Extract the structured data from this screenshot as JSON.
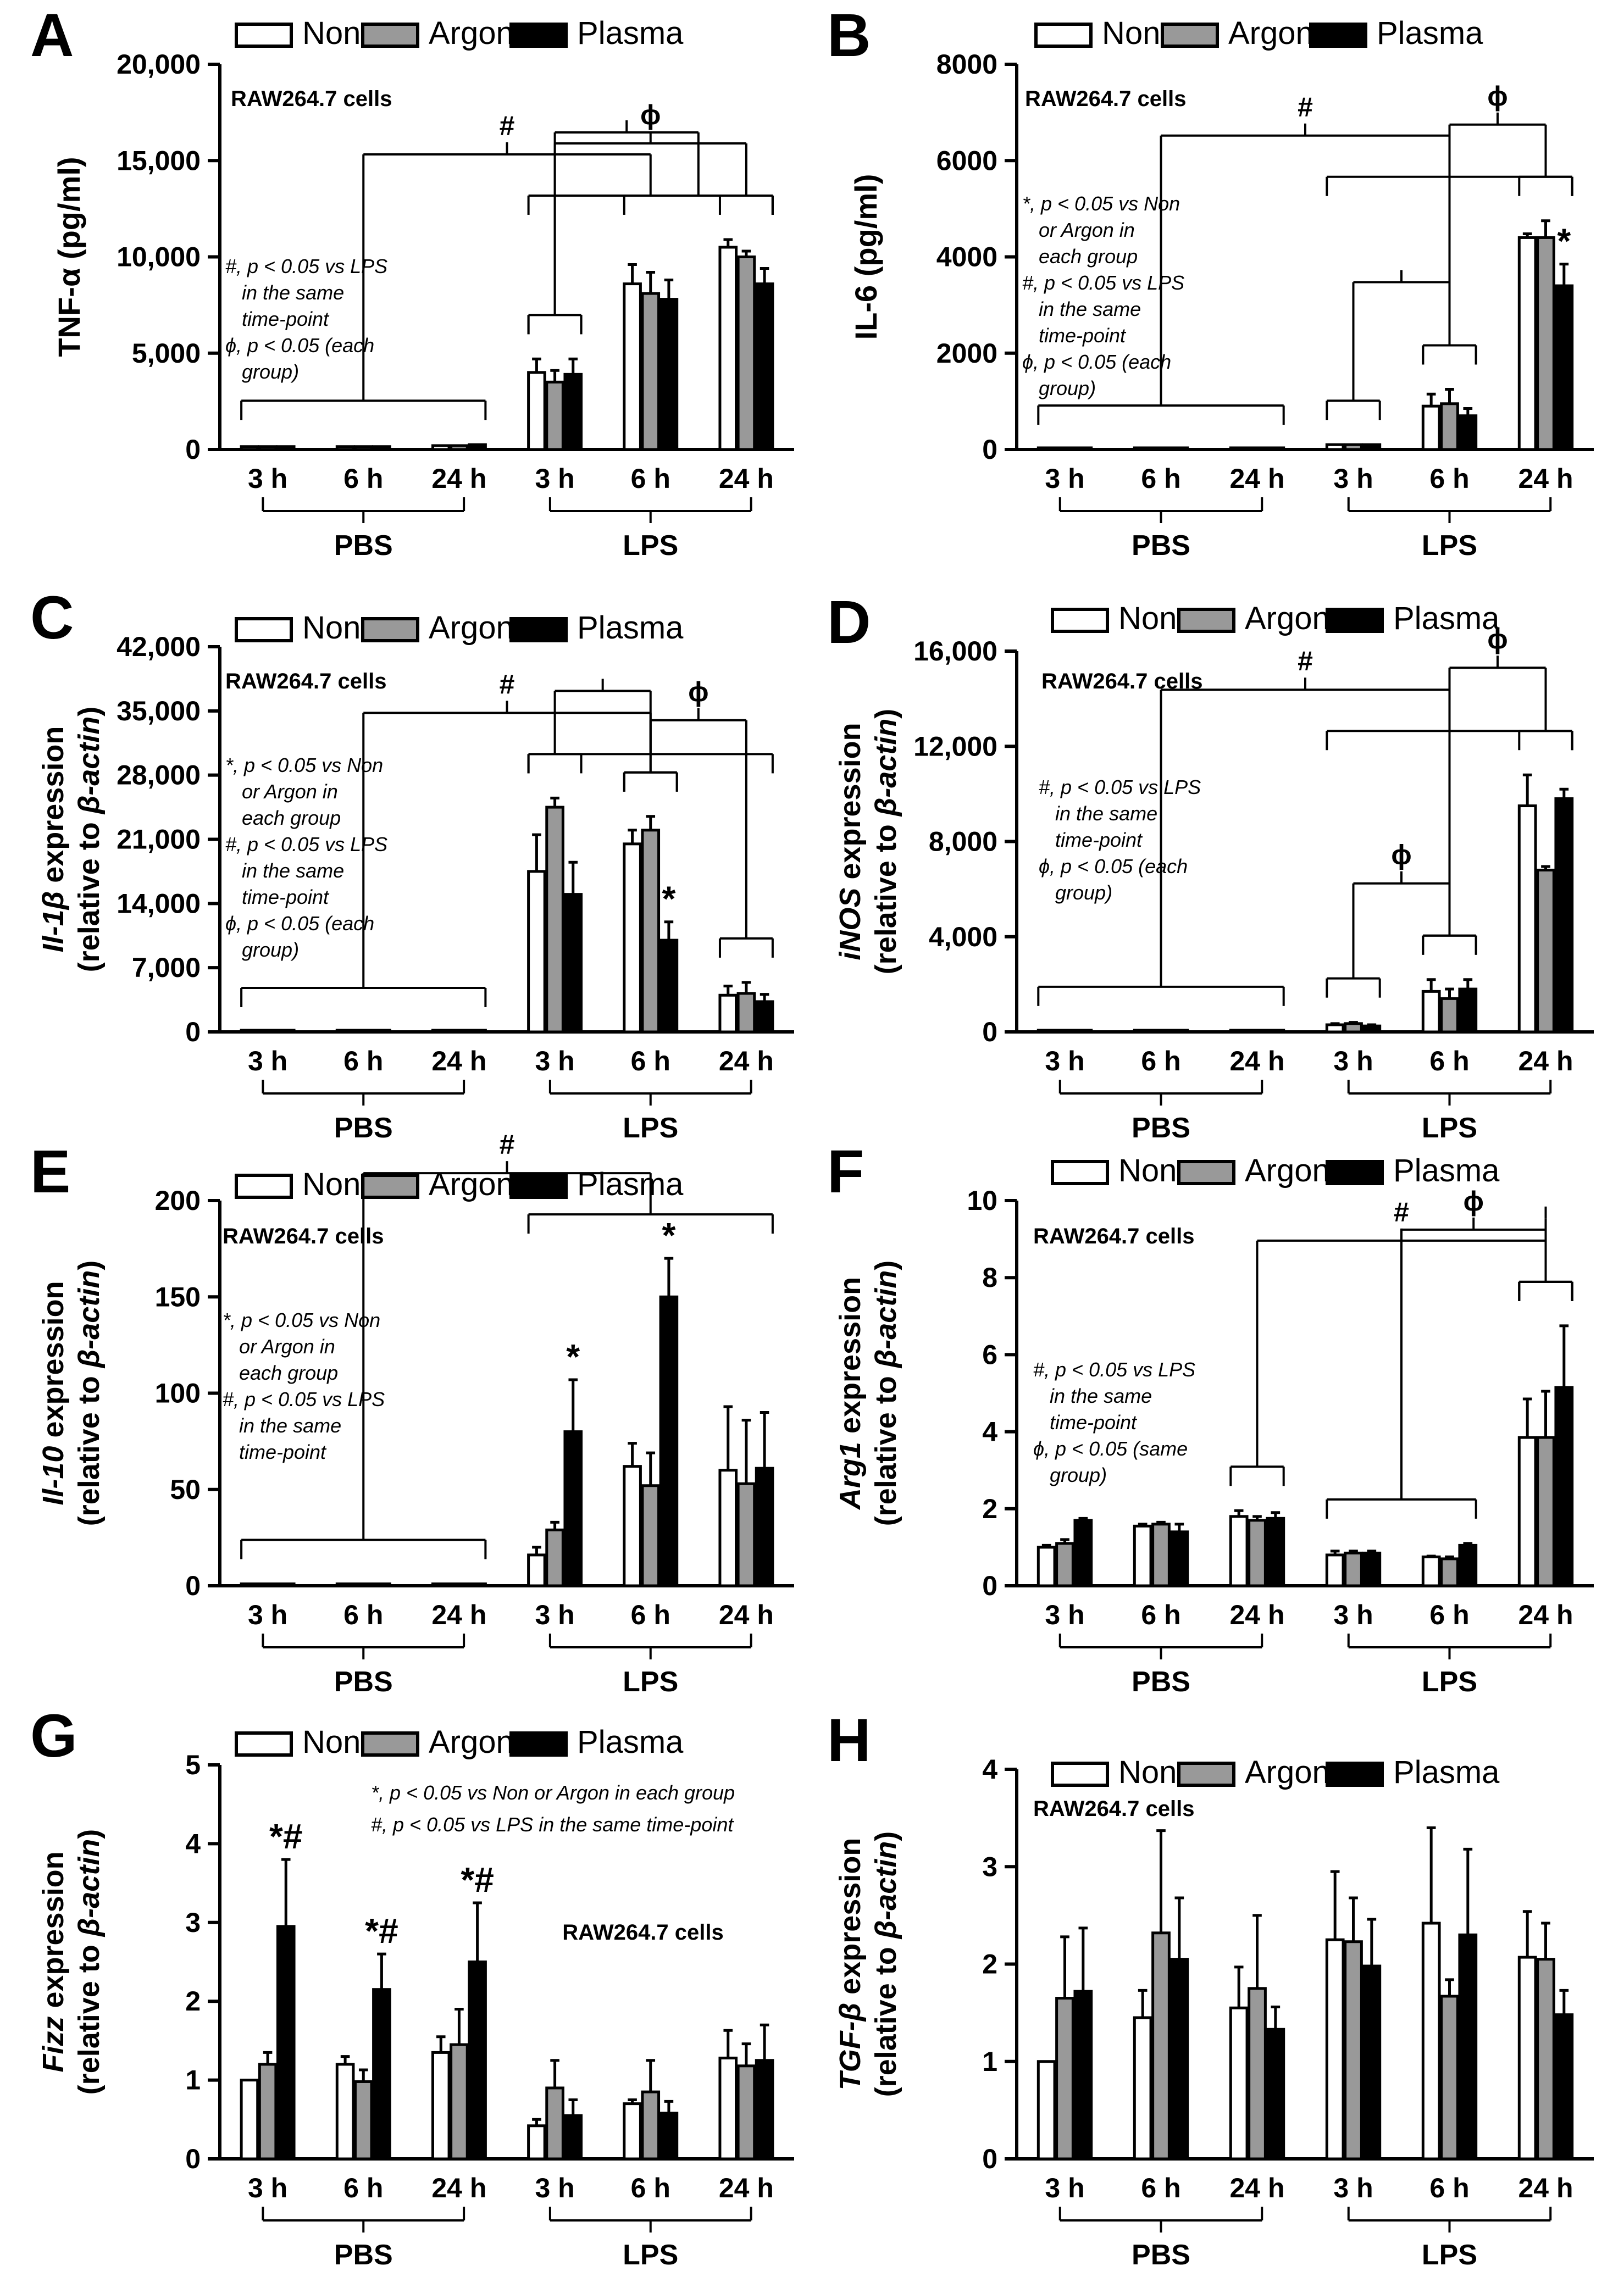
{
  "figure": {
    "x_group_labels": [
      "PBS",
      "LPS"
    ],
    "timepoint_labels": [
      "3 h",
      "6 h",
      "24 h"
    ],
    "legend": [
      "Non",
      "Argon",
      "Plasma"
    ],
    "cell_label": "RAW264.7 cells"
  },
  "colors": {
    "Non": "#ffffff",
    "Argon": "#999999",
    "Plasma": "#000000",
    "stroke": "#000000"
  },
  "chart_data": [
    {
      "panel": "A",
      "type": "bar",
      "ylabel": "TNF-α (pg/ml)",
      "yticks": [
        "0",
        "5,000",
        "10,000",
        "15,000",
        "20,000"
      ],
      "ylim": [
        0,
        20000
      ],
      "categories": [
        "PBS 3 h",
        "PBS 6 h",
        "PBS 24 h",
        "LPS 3 h",
        "LPS 6 h",
        "LPS 24 h"
      ],
      "series": [
        {
          "name": "Non",
          "values": [
            150,
            150,
            200,
            4000,
            8600,
            10500
          ],
          "errors": [
            0,
            0,
            0,
            700,
            1000,
            400
          ]
        },
        {
          "name": "Argon",
          "values": [
            150,
            150,
            200,
            3500,
            8100,
            10000
          ],
          "errors": [
            0,
            0,
            0,
            600,
            1100,
            300
          ]
        },
        {
          "name": "Plasma",
          "values": [
            150,
            150,
            250,
            3900,
            7800,
            8600
          ],
          "errors": [
            0,
            0,
            0,
            800,
            1000,
            800
          ]
        }
      ],
      "notes": [
        "#, p < 0.05 vs LPS",
        "in the same",
        "time-point",
        "ϕ, p < 0.05 (each",
        "group)"
      ],
      "annotations": [
        {
          "text": "#",
          "bracket": [
            [
              0,
              2
            ],
            [
              3,
              5
            ]
          ]
        },
        {
          "text": "ϕ",
          "bracket": [
            [
              3,
              3
            ],
            [
              5,
              5
            ]
          ]
        },
        {
          "text": "",
          "bracket": [
            [
              3,
              3
            ],
            [
              4,
              5
            ]
          ]
        }
      ]
    },
    {
      "panel": "B",
      "type": "bar",
      "ylabel": "IL-6 (pg/ml)",
      "yticks": [
        "0",
        "2000",
        "4000",
        "6000",
        "8000"
      ],
      "ylim": [
        0,
        8000
      ],
      "categories": [
        "PBS 3 h",
        "PBS 6 h",
        "PBS 24 h",
        "LPS 3 h",
        "LPS 6 h",
        "LPS 24 h"
      ],
      "series": [
        {
          "name": "Non",
          "values": [
            0,
            0,
            0,
            100,
            900,
            4400
          ],
          "errors": [
            0,
            0,
            0,
            0,
            250,
            80
          ]
        },
        {
          "name": "Argon",
          "values": [
            0,
            0,
            0,
            100,
            950,
            4400
          ],
          "errors": [
            0,
            0,
            0,
            0,
            300,
            350
          ]
        },
        {
          "name": "Plasma",
          "values": [
            0,
            0,
            0,
            100,
            700,
            3400
          ],
          "errors": [
            0,
            0,
            0,
            0,
            150,
            450
          ]
        }
      ],
      "notes": [
        "*, p < 0.05 vs Non",
        "or Argon in",
        "each group",
        "#, p < 0.05 vs LPS",
        "in the same",
        "time-point",
        "ϕ, p < 0.05 (each",
        "group)"
      ],
      "stars": [
        {
          "cat": 5,
          "series": 2,
          "text": "*"
        }
      ],
      "annotations": [
        {
          "text": "#",
          "bracket": [
            [
              0,
              2
            ],
            [
              3,
              5
            ]
          ]
        },
        {
          "text": "ϕ",
          "bracket": [
            [
              4,
              4
            ],
            [
              5,
              5
            ]
          ]
        },
        {
          "text": "",
          "bracket": [
            [
              3,
              3
            ],
            [
              4,
              4
            ]
          ]
        }
      ]
    },
    {
      "panel": "C",
      "type": "bar",
      "ylabel_italic": "Il-1β",
      "ylabel_rest": " expression",
      "ylabel2_pre": "(relative to ",
      "ylabel2_italic": "β-actin",
      "ylabel2_post": ")",
      "yticks": [
        "0",
        "7,000",
        "14,000",
        "21,000",
        "28,000",
        "35,000",
        "42,000"
      ],
      "ylim": [
        0,
        42000
      ],
      "categories": [
        "PBS 3 h",
        "PBS 6 h",
        "PBS 24 h",
        "LPS 3 h",
        "LPS 6 h",
        "LPS 24 h"
      ],
      "series": [
        {
          "name": "Non",
          "values": [
            0,
            0,
            0,
            17500,
            20500,
            4000
          ],
          "errors": [
            0,
            0,
            0,
            4000,
            1500,
            1000
          ]
        },
        {
          "name": "Argon",
          "values": [
            0,
            0,
            0,
            24500,
            22000,
            4200
          ],
          "errors": [
            0,
            0,
            0,
            1000,
            1500,
            1200
          ]
        },
        {
          "name": "Plasma",
          "values": [
            0,
            0,
            0,
            15000,
            10000,
            3300
          ],
          "errors": [
            0,
            0,
            0,
            3500,
            2000,
            800
          ]
        }
      ],
      "notes": [
        "*, p < 0.05 vs Non",
        "or Argon in",
        "each group",
        "#, p < 0.05 vs LPS",
        "in the same",
        "time-point",
        "ϕ, p < 0.05 (each",
        "group)"
      ],
      "stars": [
        {
          "cat": 4,
          "series": 2,
          "text": "*"
        }
      ],
      "annotations": [
        {
          "text": "#",
          "bracket": [
            [
              0,
              2
            ],
            [
              3,
              5
            ]
          ]
        },
        {
          "text": "ϕ",
          "bracket": [
            [
              4,
              4
            ],
            [
              5,
              5
            ]
          ]
        },
        {
          "text": "",
          "bracket": [
            [
              3,
              3
            ],
            [
              4,
              4
            ]
          ]
        }
      ]
    },
    {
      "panel": "D",
      "type": "bar",
      "ylabel_italic": "iNOS",
      "ylabel_rest": " expression",
      "ylabel2_pre": "(relative to ",
      "ylabel2_italic": "β-actin",
      "ylabel2_post": ")",
      "yticks": [
        "0",
        "4,000",
        "8,000",
        "12,000",
        "16,000"
      ],
      "ylim": [
        0,
        16000
      ],
      "categories": [
        "PBS 3 h",
        "PBS 6 h",
        "PBS 24 h",
        "LPS 3 h",
        "LPS 6 h",
        "LPS 24 h"
      ],
      "series": [
        {
          "name": "Non",
          "values": [
            0,
            0,
            0,
            300,
            1700,
            9500
          ],
          "errors": [
            0,
            0,
            0,
            50,
            500,
            1300
          ]
        },
        {
          "name": "Argon",
          "values": [
            0,
            0,
            0,
            350,
            1400,
            6800
          ],
          "errors": [
            0,
            0,
            0,
            50,
            400,
            150
          ]
        },
        {
          "name": "Plasma",
          "values": [
            0,
            0,
            50,
            250,
            1800,
            9800
          ],
          "errors": [
            0,
            0,
            0,
            50,
            400,
            400
          ]
        }
      ],
      "notes": [
        "#, p < 0.05 vs LPS",
        "in the same",
        "time-point",
        "ϕ, p < 0.05 (each",
        "group)"
      ],
      "annotations": [
        {
          "text": "#",
          "bracket": [
            [
              0,
              2
            ],
            [
              3,
              5
            ]
          ]
        },
        {
          "text": "ϕ",
          "bracket": [
            [
              3,
              3
            ],
            [
              4,
              4
            ]
          ]
        },
        {
          "text": "ϕ",
          "bracket": [
            [
              4,
              4
            ],
            [
              5,
              5
            ]
          ]
        }
      ]
    },
    {
      "panel": "E",
      "type": "bar",
      "ylabel_italic": "Il-10",
      "ylabel_rest": " expression",
      "ylabel2_pre": "(relative to ",
      "ylabel2_italic": "β-actin",
      "ylabel2_post": ")",
      "yticks": [
        "0",
        "50",
        "100",
        "150",
        "200"
      ],
      "ylim": [
        0,
        200
      ],
      "categories": [
        "PBS 3 h",
        "PBS 6 h",
        "PBS 24 h",
        "LPS 3 h",
        "LPS 6 h",
        "LPS 24 h"
      ],
      "series": [
        {
          "name": "Non",
          "values": [
            1,
            1,
            1,
            16,
            62,
            60
          ],
          "errors": [
            0,
            0,
            0,
            4,
            12,
            33
          ]
        },
        {
          "name": "Argon",
          "values": [
            1,
            1,
            1,
            29,
            52,
            53
          ],
          "errors": [
            0,
            0,
            0,
            4,
            17,
            33
          ]
        },
        {
          "name": "Plasma",
          "values": [
            1,
            1,
            1,
            80,
            150,
            61
          ],
          "errors": [
            0,
            0,
            0,
            27,
            20,
            29
          ]
        }
      ],
      "notes": [
        "*, p < 0.05 vs Non",
        "or Argon in",
        "each group",
        "#, p < 0.05 vs LPS",
        "in the same",
        "time-point"
      ],
      "stars": [
        {
          "cat": 3,
          "series": 2,
          "text": "*"
        },
        {
          "cat": 4,
          "series": 2,
          "text": "*"
        }
      ],
      "annotations": [
        {
          "text": "#",
          "bracket": [
            [
              0,
              2
            ],
            [
              3,
              5
            ]
          ]
        }
      ]
    },
    {
      "panel": "F",
      "type": "bar",
      "ylabel_italic": "Arg1",
      "ylabel_rest": " expression",
      "ylabel2_pre": "(relative to ",
      "ylabel2_italic": "β-actin",
      "ylabel2_post": ")",
      "yticks": [
        "0",
        "2",
        "4",
        "6",
        "8",
        "10"
      ],
      "ylim": [
        0,
        10
      ],
      "categories": [
        "PBS 3 h",
        "PBS 6 h",
        "PBS 24 h",
        "LPS 3 h",
        "LPS 6 h",
        "LPS 24 h"
      ],
      "series": [
        {
          "name": "Non",
          "values": [
            1.0,
            1.55,
            1.8,
            0.8,
            0.75,
            3.85
          ],
          "errors": [
            0.05,
            0.05,
            0.15,
            0.1,
            0.02,
            1.0
          ]
        },
        {
          "name": "Argon",
          "values": [
            1.1,
            1.6,
            1.7,
            0.85,
            0.7,
            3.85
          ],
          "errors": [
            0.1,
            0.05,
            0.1,
            0.05,
            0.05,
            1.2
          ]
        },
        {
          "name": "Plasma",
          "values": [
            1.7,
            1.4,
            1.75,
            0.85,
            1.05,
            5.15
          ],
          "errors": [
            0.05,
            0.2,
            0.15,
            0.05,
            0.05,
            1.6
          ]
        }
      ],
      "notes": [
        "#, p < 0.05 vs LPS",
        "in the same",
        "time-point",
        "ϕ, p < 0.05 (same",
        "group)"
      ],
      "annotations": [
        {
          "text": "#",
          "bracket": [
            [
              2,
              2
            ],
            [
              5,
              5
            ]
          ]
        },
        {
          "text": "ϕ",
          "bracket": [
            [
              3,
              4
            ],
            [
              5,
              5
            ]
          ]
        },
        {
          "text": "",
          "bracket": [
            [
              5,
              5
            ],
            [
              5,
              5
            ]
          ]
        }
      ]
    },
    {
      "panel": "G",
      "type": "bar",
      "ylabel_italic": "Fizz",
      "ylabel_rest": " expression",
      "ylabel2_pre": "(relative to ",
      "ylabel2_italic": "β-actin",
      "ylabel2_post": ")",
      "yticks": [
        "0",
        "1",
        "2",
        "3",
        "4",
        "5"
      ],
      "ylim": [
        0,
        5
      ],
      "categories": [
        "PBS 3 h",
        "PBS 6 h",
        "PBS 24 h",
        "LPS 3 h",
        "LPS 6 h",
        "LPS 24 h"
      ],
      "series": [
        {
          "name": "Non",
          "values": [
            1.0,
            1.2,
            1.35,
            0.42,
            0.7,
            1.28
          ],
          "errors": [
            0,
            0.1,
            0.2,
            0.08,
            0.05,
            0.35
          ]
        },
        {
          "name": "Argon",
          "values": [
            1.2,
            0.98,
            1.45,
            0.9,
            0.85,
            1.18
          ],
          "errors": [
            0.15,
            0.15,
            0.45,
            0.35,
            0.4,
            0.28
          ]
        },
        {
          "name": "Plasma",
          "values": [
            2.95,
            2.15,
            2.5,
            0.55,
            0.58,
            1.25
          ],
          "errors": [
            0.85,
            0.45,
            0.75,
            0.2,
            0.15,
            0.45
          ]
        }
      ],
      "notes_top": [
        "*, p < 0.05 vs Non or Argon in each group",
        "#, p < 0.05 vs LPS in the same time-point"
      ],
      "stars": [
        {
          "cat": 0,
          "series": 2,
          "text": "*#"
        },
        {
          "cat": 1,
          "series": 2,
          "text": "*#"
        },
        {
          "cat": 2,
          "series": 2,
          "text": "*#"
        }
      ],
      "annotations": []
    },
    {
      "panel": "H",
      "type": "bar",
      "ylabel_italic": "TGF-β",
      "ylabel_rest": " expression",
      "ylabel2_pre": "(relative to ",
      "ylabel2_italic": "β-actin",
      "ylabel2_post": ")",
      "yticks": [
        "0",
        "1",
        "2",
        "3",
        "4"
      ],
      "ylim": [
        0,
        4
      ],
      "categories": [
        "PBS 3 h",
        "PBS 6 h",
        "PBS 24 h",
        "LPS 3 h",
        "LPS 6 h",
        "LPS 24 h"
      ],
      "series": [
        {
          "name": "Non",
          "values": [
            1.0,
            1.45,
            1.55,
            2.25,
            2.42,
            2.07
          ],
          "errors": [
            0,
            0.28,
            0.42,
            0.7,
            0.98,
            0.47
          ]
        },
        {
          "name": "Argon",
          "values": [
            1.65,
            2.32,
            1.75,
            2.23,
            1.67,
            2.05
          ],
          "errors": [
            0.63,
            1.05,
            0.75,
            0.45,
            0.17,
            0.37
          ]
        },
        {
          "name": "Plasma",
          "values": [
            1.72,
            2.05,
            1.33,
            1.98,
            2.3,
            1.48
          ],
          "errors": [
            0.65,
            0.63,
            0.23,
            0.48,
            0.88,
            0.25
          ]
        }
      ],
      "annotations": []
    }
  ]
}
